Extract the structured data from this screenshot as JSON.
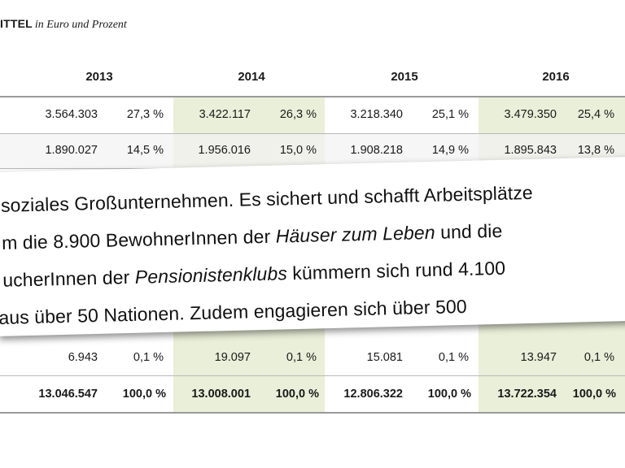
{
  "heading": {
    "title": "ITTEL",
    "subtitle": "in Euro und Prozent"
  },
  "table": {
    "years": [
      "2013",
      "2014",
      "2015",
      "2016"
    ],
    "rows": [
      {
        "cells": [
          {
            "value": "3.564.303",
            "pct": "27,3 %"
          },
          {
            "value": "3.422.117",
            "pct": "26,3 %"
          },
          {
            "value": "3.218.340",
            "pct": "25,1 %"
          },
          {
            "value": "3.479.350",
            "pct": "25,4 %"
          }
        ]
      },
      {
        "cells": [
          {
            "value": "1.890.027",
            "pct": "14,5 %"
          },
          {
            "value": "1.956.016",
            "pct": "15,0 %"
          },
          {
            "value": "1.908.218",
            "pct": "14,9 %"
          },
          {
            "value": "1.895.843",
            "pct": "13,8 %"
          }
        ]
      },
      {
        "cells": [
          {
            "value": "6.943",
            "pct": "0,1 %"
          },
          {
            "value": "19.097",
            "pct": "0,1 %"
          },
          {
            "value": "15.081",
            "pct": "0,1 %"
          },
          {
            "value": "13.947",
            "pct": "0,1 %"
          }
        ]
      }
    ],
    "totals": [
      {
        "value": "13.046.547",
        "pct": "100,0 %"
      },
      {
        "value": "13.008.001",
        "pct": "100,0 %"
      },
      {
        "value": "12.806.322",
        "pct": "100,0 %"
      },
      {
        "value": "13.722.354",
        "pct": "100,0 %"
      }
    ]
  },
  "overlay": {
    "line1": "soziales Großunternehmen. Es sichert und schafft Arbeitsplätze",
    "line2_pre": "m die 8.900 BewohnerInnen der ",
    "line2_em": "Häuser zum Leben",
    "line2_post": " und die",
    "line3_pre": "ucherInnen der ",
    "line3_em": "Pensionistenklubs",
    "line3_post": " kümmern sich rund 4.100",
    "line4": " aus über 50 Nationen. Zudem engagieren sich über 500"
  }
}
